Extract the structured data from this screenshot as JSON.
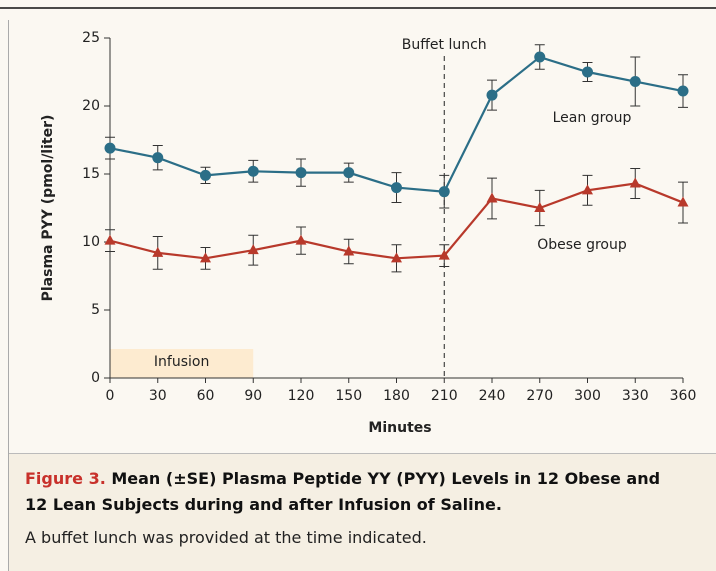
{
  "chart_data": {
    "type": "line",
    "x_label": "Minutes",
    "y_label": "Plasma PYY (pmol/liter)",
    "x": [
      0,
      30,
      60,
      90,
      120,
      150,
      180,
      210,
      240,
      270,
      300,
      330,
      360
    ],
    "series": [
      {
        "name": "Lean group",
        "color": "#2b6e87",
        "marker": "circle",
        "values": [
          16.9,
          16.2,
          14.9,
          15.2,
          15.1,
          15.1,
          14.0,
          13.7,
          20.8,
          23.6,
          22.5,
          21.8,
          21.1
        ],
        "errors": [
          0.8,
          0.9,
          0.6,
          0.8,
          1.0,
          0.7,
          1.1,
          1.2,
          1.1,
          0.9,
          0.7,
          1.8,
          1.2
        ]
      },
      {
        "name": "Obese group",
        "color": "#b8392b",
        "marker": "triangle",
        "values": [
          10.1,
          9.2,
          8.8,
          9.4,
          10.1,
          9.3,
          8.8,
          9.0,
          13.2,
          12.5,
          13.8,
          14.3,
          12.9
        ],
        "errors": [
          0.8,
          1.2,
          0.8,
          1.1,
          1.0,
          0.9,
          1.0,
          0.8,
          1.5,
          1.3,
          1.1,
          1.1,
          1.5
        ]
      }
    ],
    "xlim": [
      0,
      360
    ],
    "xticks": [
      0,
      30,
      60,
      90,
      120,
      150,
      180,
      210,
      240,
      270,
      300,
      330,
      360
    ],
    "ylim": [
      0,
      25
    ],
    "yticks": [
      0,
      5,
      10,
      15,
      20,
      25
    ],
    "vline": {
      "x": 210,
      "text": "Buffet lunch"
    },
    "span": {
      "x": [
        0,
        90
      ],
      "text": "Infusion",
      "color": "#fdebd0"
    },
    "caption_label": "Figure 3.",
    "caption_title": "Mean (±SE) Plasma Peptide YY (PYY) Levels in 12 Obese and 12 Lean Subjects during and after Infusion of Saline.",
    "caption_note": "A buffet lunch was provided at the time indicated."
  }
}
